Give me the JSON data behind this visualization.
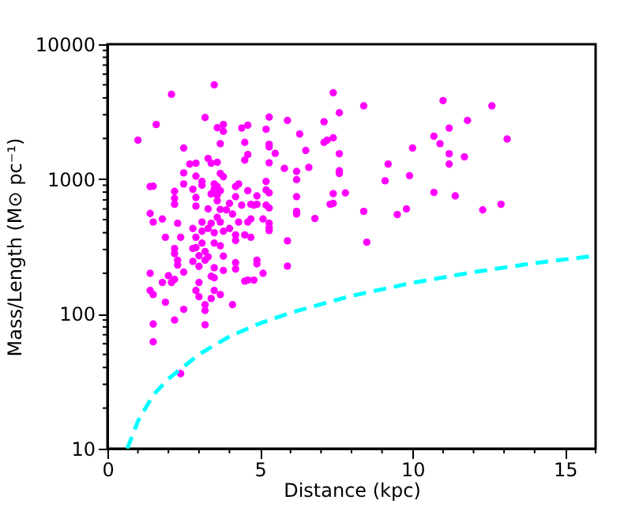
{
  "chart_data": {
    "type": "scatter",
    "xlabel": "Distance (kpc)",
    "ylabel": "Mass/Length (M⊙ pc⁻¹)",
    "log": "y",
    "grid": false,
    "xlim": [
      0,
      16
    ],
    "ylim": [
      10,
      10000
    ],
    "xticks": [
      0,
      {
        "value": 1,
        "label": null
      },
      {
        "value": 2,
        "label": null
      },
      {
        "value": 3,
        "label": null
      },
      {
        "value": 4,
        "label": null
      },
      5,
      {
        "value": 6,
        "label": null
      },
      {
        "value": 7,
        "label": null
      },
      {
        "value": 8,
        "label": null
      },
      {
        "value": 9,
        "label": null
      },
      10,
      {
        "value": 11,
        "label": null
      },
      {
        "value": 12,
        "label": null
      },
      {
        "value": 13,
        "label": null
      },
      {
        "value": 14,
        "label": null
      },
      15,
      {
        "value": 16,
        "label": null
      }
    ],
    "yticks": [
      10,
      {
        "value": 20,
        "label": null
      },
      {
        "value": 30,
        "label": null
      },
      {
        "value": 40,
        "label": null
      },
      {
        "value": 50,
        "label": null
      },
      {
        "value": 60,
        "label": null
      },
      {
        "value": 70,
        "label": null
      },
      {
        "value": 80,
        "label": null
      },
      {
        "value": 90,
        "label": null
      },
      100,
      {
        "value": 200,
        "label": null
      },
      {
        "value": 300,
        "label": null
      },
      {
        "value": 400,
        "label": null
      },
      {
        "value": 500,
        "label": null
      },
      {
        "value": 600,
        "label": null
      },
      {
        "value": 700,
        "label": null
      },
      {
        "value": 800,
        "label": null
      },
      {
        "value": 900,
        "label": null
      },
      1000,
      {
        "value": 2000,
        "label": null
      },
      {
        "value": 3000,
        "label": null
      },
      {
        "value": 4000,
        "label": null
      },
      {
        "value": 5000,
        "label": null
      },
      {
        "value": 6000,
        "label": null
      },
      {
        "value": 7000,
        "label": null
      },
      {
        "value": 8000,
        "label": null
      },
      {
        "value": 9000,
        "label": null
      },
      10000
    ],
    "series": [
      {
        "marker": "circle",
        "color": "#ff00ff",
        "x": [
          1.0,
          1.6,
          2.1,
          3.5,
          3.2,
          2.5,
          3.8,
          3.8,
          3.6,
          3.7,
          4.4,
          4.6,
          4.5,
          4.6,
          4.5,
          5.2,
          5.3,
          5.3,
          5.3,
          5.5,
          5.3,
          5.9,
          6.3,
          5.8,
          6.2,
          6.2,
          6.6,
          6.5,
          7.1,
          7.4,
          7.6,
          7.1,
          7.2,
          7.4,
          7.6,
          7.6,
          7.6,
          7.8,
          7.4,
          7.4,
          7.3,
          6.8,
          6.2,
          6.2,
          6.2,
          5.9,
          5.9,
          8.4,
          8.4,
          8.5,
          9.1,
          9.2,
          9.5,
          9.8,
          9.9,
          10.0,
          10.7,
          11.0,
          10.9,
          11.2,
          11.2,
          11.2,
          10.7,
          11.4,
          11.7,
          11.8,
          12.3,
          12.6,
          12.9,
          13.1,
          1.4,
          1.5,
          1.4,
          1.5,
          1.8,
          1.4,
          1.4,
          1.5,
          1.5,
          1.5,
          1.9,
          1.8,
          1.9,
          2.0,
          2.1,
          2.2,
          2.2,
          2.2,
          2.3,
          2.2,
          2.2,
          2.3,
          2.3,
          2.2,
          2.2,
          2.5,
          2.4,
          2.4,
          2.5,
          2.5,
          2.5,
          2.7,
          2.9,
          2.9,
          2.8,
          2.9,
          2.9,
          2.8,
          2.9,
          2.8,
          2.8,
          2.9,
          3.0,
          3.0,
          3.0,
          2.9,
          3.0,
          3.1,
          3.1,
          3.1,
          3.1,
          3.1,
          3.2,
          3.2,
          3.2,
          3.2,
          3.2,
          3.3,
          3.3,
          3.3,
          3.4,
          3.4,
          3.3,
          3.4,
          3.4,
          3.5,
          3.5,
          3.6,
          3.6,
          3.6,
          3.6,
          3.4,
          3.5,
          3.5,
          3.5,
          3.5,
          3.5,
          3.7,
          3.7,
          3.8,
          3.6,
          3.7,
          3.7,
          3.7,
          3.8,
          3.7,
          3.8,
          3.8,
          3.9,
          4.0,
          4.1,
          4.0,
          4.2,
          4.2,
          4.3,
          4.2,
          4.2,
          4.2,
          4.3,
          4.2,
          4.1,
          4.5,
          4.4,
          4.6,
          4.5,
          4.6,
          4.7,
          4.6,
          4.7,
          4.7,
          4.8,
          4.9,
          4.9,
          4.9,
          4.9,
          4.8,
          5.1,
          5.1,
          5.2,
          5.3,
          5.2,
          5.2,
          5.3,
          5.3,
          5.3,
          5.3
        ],
        "values": [
          1940,
          2540,
          4250,
          5000,
          2860,
          1700,
          2540,
          2260,
          2400,
          1830,
          2390,
          2510,
          1380,
          1520,
          1870,
          2340,
          2880,
          1810,
          1730,
          1550,
          1320,
          2720,
          2160,
          1200,
          1140,
          990,
          1220,
          1630,
          2660,
          4370,
          3100,
          1870,
          1940,
          2020,
          1540,
          1100,
          1150,
          789,
          780,
          660,
          650,
          510,
          550,
          575,
          740,
          348,
          226,
          3490,
          575,
          340,
          970,
          1290,
          545,
          600,
          1060,
          1700,
          2080,
          3820,
          1830,
          2390,
          1540,
          1290,
          795,
          750,
          1460,
          2720,
          590,
          3490,
          650,
          1980,
          880,
          885,
          555,
          480,
          505,
          200,
          149,
          139,
          84,
          62,
          370,
          171,
          122,
          192,
          171,
          810,
          720,
          650,
          470,
          305,
          280,
          250,
          230,
          180,
          90,
          108,
          36,
          370,
          204,
          920,
          1110,
          1290,
          1310,
          1050,
          840,
          730,
          630,
          430,
          370,
          305,
          245,
          310,
          270,
          225,
          171,
          149,
          134,
          960,
          900,
          480,
          410,
          335,
          290,
          250,
          117,
          106,
          83,
          600,
          430,
          265,
          190,
          130,
          1420,
          1310,
          775,
          920,
          840,
          760,
          1330,
          690,
          520,
          470,
          400,
          335,
          220,
          185,
          149,
          139,
          1100,
          1040,
          880,
          820,
          595,
          480,
          410,
          320,
          210,
          268,
          590,
          660,
          550,
          430,
          740,
          880,
          920,
          350,
          240,
          215,
          480,
          385,
          117,
          385,
          640,
          480,
          175,
          178,
          505,
          820,
          650,
          370,
          640,
          650,
          750,
          250,
          235,
          178,
          505,
          200,
          640,
          610,
          830,
          960,
          790,
          470,
          435,
          415
        ]
      },
      {
        "type": "line",
        "line_style": "dashed",
        "marker": "none",
        "color": "#00ffff",
        "x": [
          0.65,
          1,
          1.5,
          2,
          3,
          4,
          5,
          6,
          8,
          10,
          12,
          14,
          16
        ],
        "values": [
          10,
          16,
          25,
          33,
          50,
          68,
          85,
          102,
          136,
          170,
          204,
          238,
          270
        ]
      }
    ]
  }
}
